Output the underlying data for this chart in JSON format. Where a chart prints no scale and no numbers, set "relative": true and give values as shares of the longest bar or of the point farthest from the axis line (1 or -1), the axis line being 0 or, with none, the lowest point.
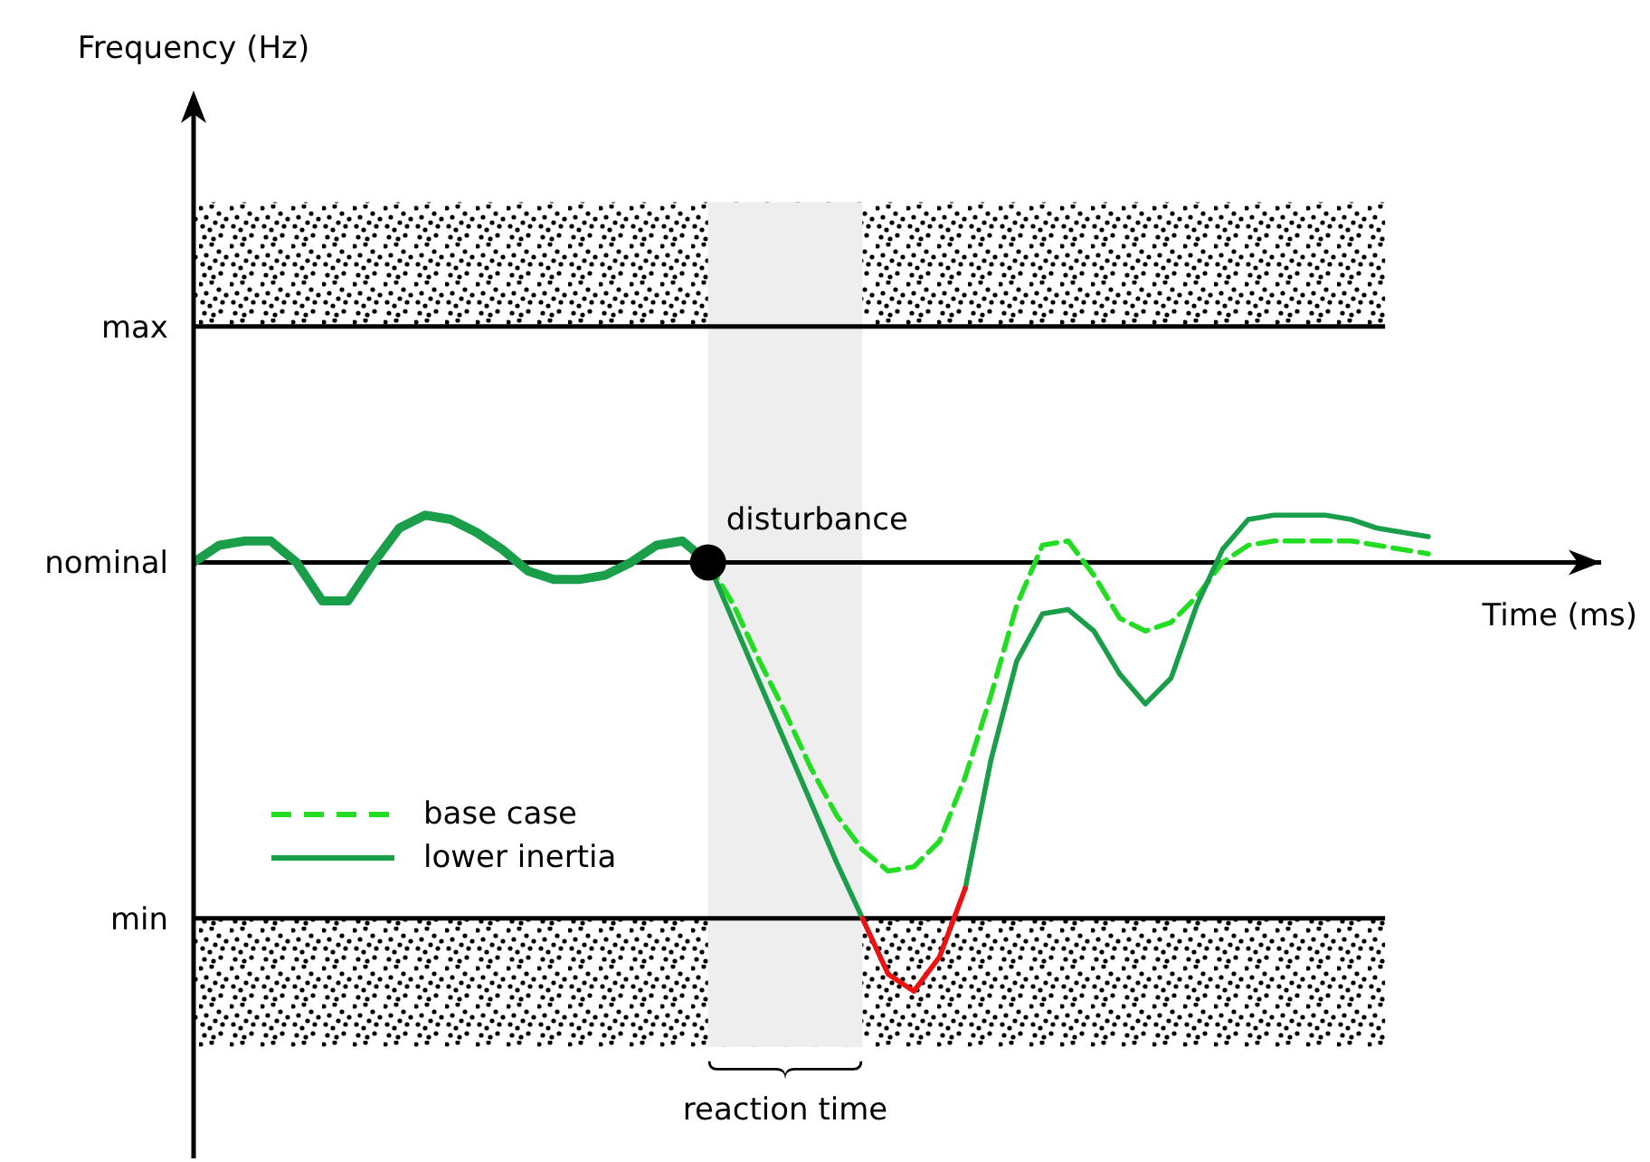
{
  "chart_data": {
    "type": "line",
    "relative": true,
    "xlabel": "Time (ms)",
    "categories": [
      null,
      null,
      null,
      null,
      null,
      null,
      null,
      null,
      null,
      null,
      null,
      null,
      null,
      null,
      null,
      null,
      null,
      null,
      null,
      null,
      null,
      null,
      null,
      null,
      null,
      null,
      null,
      null,
      null,
      null,
      null,
      null,
      null,
      null,
      null,
      null,
      null,
      null,
      null,
      null,
      null,
      null,
      null,
      null,
      null,
      null,
      null,
      null,
      null
    ],
    "series": [
      {
        "color": "#1a9e4a",
        "values": [
          0,
          0.04,
          0.05,
          0.05,
          0.0,
          -0.09,
          -0.09,
          0.0,
          0.08,
          0.11,
          0.1,
          0.07,
          0.03,
          -0.02,
          -0.04,
          -0.04,
          -0.03,
          0.0,
          0.04,
          0.05,
          0,
          null,
          null,
          null,
          null,
          null,
          null,
          null,
          null,
          null,
          null,
          null,
          null,
          null,
          null,
          null,
          null,
          null,
          null,
          null,
          null,
          null,
          null,
          null,
          null,
          null,
          null,
          null,
          null
        ]
      },
      {
        "name": "base case",
        "color": "#22dd22",
        "line_style": "dashed",
        "values": [
          null,
          null,
          null,
          null,
          null,
          null,
          null,
          null,
          null,
          null,
          null,
          null,
          null,
          null,
          null,
          null,
          null,
          null,
          null,
          null,
          0,
          -0.1,
          -0.23,
          -0.35,
          -0.48,
          -0.59,
          -0.67,
          -0.72,
          -0.71,
          -0.65,
          -0.5,
          -0.31,
          -0.1,
          0.04,
          0.05,
          -0.03,
          -0.13,
          -0.16,
          -0.14,
          -0.08,
          0.0,
          0.04,
          0.05,
          0.05,
          0.05,
          0.05,
          0.04,
          0.03,
          0.02
        ]
      },
      {
        "name": "lower inertia",
        "color": "#1a9e4a",
        "values": [
          null,
          null,
          null,
          null,
          null,
          null,
          null,
          null,
          null,
          null,
          null,
          null,
          null,
          null,
          null,
          null,
          null,
          null,
          null,
          null,
          0,
          -0.14,
          -0.28,
          -0.42,
          -0.56,
          -0.7,
          -0.83,
          null,
          null,
          null,
          -0.76,
          -0.46,
          -0.23,
          -0.12,
          -0.11,
          -0.16,
          -0.26,
          -0.33,
          -0.27,
          -0.1,
          0.03,
          0.1,
          0.11,
          0.11,
          0.11,
          0.1,
          0.08,
          0.07,
          0.06
        ]
      },
      {
        "color": "#ee1111",
        "values": [
          null,
          null,
          null,
          null,
          null,
          null,
          null,
          null,
          null,
          null,
          null,
          null,
          null,
          null,
          null,
          null,
          null,
          null,
          null,
          null,
          null,
          null,
          null,
          null,
          null,
          null,
          -0.83,
          -0.96,
          -1.0,
          -0.92,
          -0.76,
          null,
          null,
          null,
          null,
          null,
          null,
          null,
          null,
          null,
          null,
          null,
          null,
          null,
          null,
          null,
          null,
          null,
          null
        ]
      }
    ],
    "legend": "bottom left",
    "ref_lines": [
      {
        "axis": "y",
        "value": 0.55,
        "label": "max"
      },
      {
        "axis": "y",
        "value": 0,
        "label": "nominal"
      },
      {
        "axis": "y",
        "value": -0.83,
        "label": "min"
      }
    ],
    "bands": [
      {
        "axis": "y",
        "from": 0.55,
        "to": 0.84
      },
      {
        "axis": "y",
        "from": -1.13,
        "to": -0.83
      }
    ],
    "annotations": [
      "disturbance",
      "reaction time",
      "Frequency (Hz)"
    ]
  }
}
